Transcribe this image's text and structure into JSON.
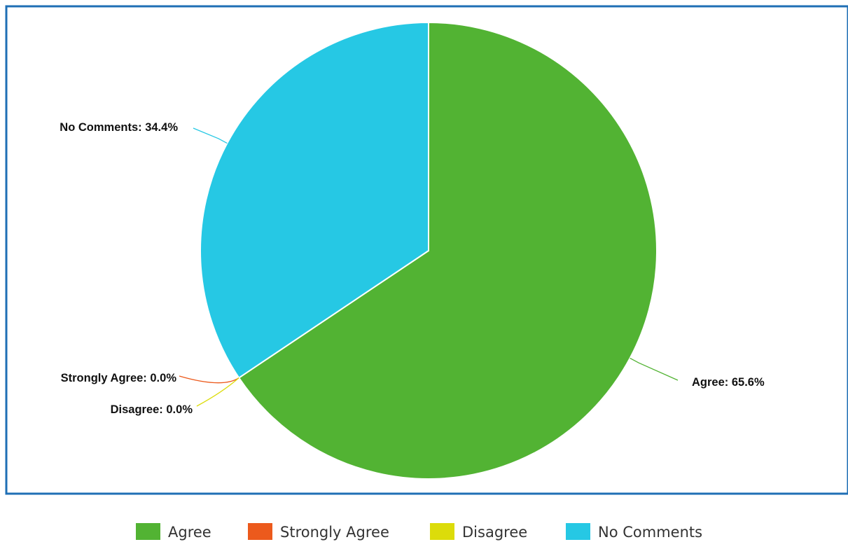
{
  "chart_data": {
    "type": "pie",
    "categories": [
      "Agree",
      "Strongly Agree",
      "Disagree",
      "No Comments"
    ],
    "values": [
      65.6,
      0.0,
      0.0,
      34.4
    ],
    "colors": [
      "#52b333",
      "#ec5a1c",
      "#dcdc0a",
      "#26c8e4"
    ],
    "data_labels": [
      "Agree: 65.6%",
      "Strongly Agree: 0.0%",
      "Disagree: 0.0%",
      "No Comments: 34.4%"
    ],
    "legend": {
      "position": "bottom",
      "entries": [
        "Agree",
        "Strongly Agree",
        "Disagree",
        "No Comments"
      ]
    },
    "frame_color": "#1f6fb5"
  }
}
